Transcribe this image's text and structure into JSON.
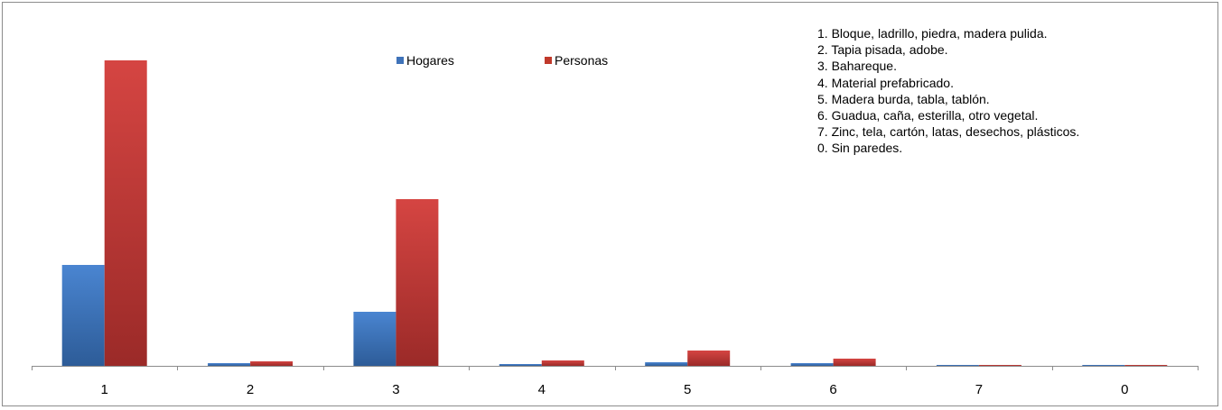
{
  "chart_data": {
    "type": "bar",
    "categories": [
      "1",
      "2",
      "3",
      "4",
      "5",
      "6",
      "7",
      "0"
    ],
    "series": [
      {
        "name": "Hogares",
        "values": [
          112,
          3,
          60,
          2,
          4,
          3,
          0.5,
          0.3
        ]
      },
      {
        "name": "Personas",
        "values": [
          339,
          5,
          185,
          6,
          17,
          8,
          1,
          1
        ]
      }
    ],
    "colors": {
      "Hogares": "#4a7ebb",
      "Personas": "#c0392b"
    },
    "ylim": [
      0,
      350
    ],
    "y_axis_visible": false,
    "grid": false,
    "legend_position": "top-center",
    "annotation": [
      "1. Bloque, ladrillo, piedra, madera pulida.",
      "2. Tapia pisada, adobe.",
      "3. Bahareque.",
      "4. Material prefabricado.",
      "5. Madera burda, tabla, tablón.",
      "6. Guadua, caña, esterilla, otro vegetal.",
      "7. Zinc, tela, cartón, latas, desechos, plásticos.",
      "0. Sin paredes."
    ]
  }
}
